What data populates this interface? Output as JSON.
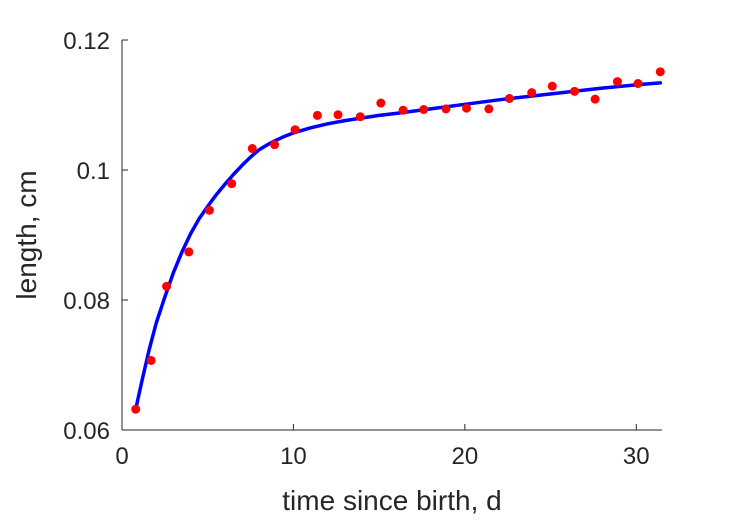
{
  "chart_data": {
    "type": "scatter",
    "xlabel": "time since birth, d",
    "ylabel": "length, cm",
    "xlim": [
      0,
      31.5
    ],
    "ylim": [
      0.06,
      0.12
    ],
    "xticks": [
      0,
      10,
      20,
      30
    ],
    "xtick_labels": [
      "0",
      "10",
      "20",
      "30"
    ],
    "yticks": [
      0.06,
      0.08,
      0.1,
      0.12
    ],
    "ytick_labels": [
      "0.06",
      "0.08",
      "0.1",
      "0.12"
    ],
    "grid": false,
    "colors": {
      "points": "#ff0000",
      "fit": "#0000ff",
      "axes": "#262626"
    },
    "series": [
      {
        "kind": "scatter",
        "x": [
          0.8,
          1.7,
          2.6,
          3.9,
          5.1,
          6.4,
          7.6,
          8.9,
          10.1,
          11.4,
          12.6,
          13.9,
          15.1,
          16.4,
          17.6,
          18.9,
          20.1,
          21.4,
          22.6,
          23.9,
          25.1,
          26.4,
          27.6,
          28.9,
          30.1,
          31.4
        ],
        "y": [
          0.0632,
          0.0707,
          0.0821,
          0.0874,
          0.0938,
          0.0979,
          0.1033,
          0.1039,
          0.1062,
          0.1084,
          0.1085,
          0.1082,
          0.1103,
          0.1092,
          0.1093,
          0.1094,
          0.1095,
          0.1094,
          0.111,
          0.1119,
          0.1129,
          0.1121,
          0.1109,
          0.1136,
          0.1133,
          0.1151
        ]
      },
      {
        "kind": "line",
        "x": [
          0.8,
          1.2,
          1.6,
          2.0,
          2.5,
          3.0,
          3.5,
          4.0,
          4.5,
          5.0,
          5.5,
          6.0,
          6.5,
          7.0,
          7.5,
          8.0,
          8.5,
          9.0,
          9.5,
          10.0,
          11.0,
          12.0,
          13.0,
          14.0,
          15.0,
          16.0,
          18.0,
          20.0,
          22.0,
          24.0,
          26.0,
          28.0,
          30.0,
          31.4
        ],
        "y": [
          0.0632,
          0.068,
          0.0725,
          0.0765,
          0.0805,
          0.0842,
          0.0874,
          0.0902,
          0.0925,
          0.0944,
          0.0962,
          0.0978,
          0.0993,
          0.1007,
          0.102,
          0.1031,
          0.1039,
          0.1046,
          0.1052,
          0.1057,
          0.1065,
          0.1071,
          0.1076,
          0.108,
          0.1084,
          0.1087,
          0.1094,
          0.1101,
          0.1108,
          0.1114,
          0.112,
          0.1126,
          0.1131,
          0.1134
        ]
      }
    ]
  }
}
